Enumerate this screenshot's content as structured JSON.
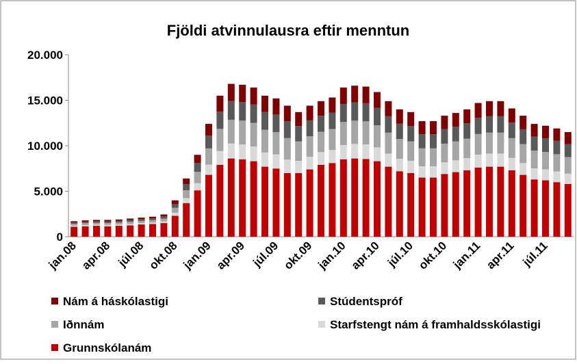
{
  "chart_data": {
    "type": "stacked_bar",
    "title": "Fjöldi atvinnulausra eftir menntun",
    "categories": [
      "jan.08",
      null,
      null,
      "apr.08",
      null,
      null,
      "júl.08",
      null,
      null,
      "okt.08",
      null,
      null,
      "jan.09",
      null,
      null,
      "apr.09",
      null,
      null,
      "júl.09",
      null,
      null,
      "okt.09",
      null,
      null,
      "jan.10",
      null,
      null,
      "apr.10",
      null,
      null,
      "júl.10",
      null,
      null,
      "okt.10",
      null,
      null,
      "jan.11",
      null,
      null,
      "apr.11",
      null,
      null,
      "júl.11",
      null,
      null
    ],
    "series": [
      {
        "name": "Grunnskólanám",
        "color": "#c00000",
        "values": [
          1100,
          1150,
          1200,
          1150,
          1200,
          1250,
          1350,
          1400,
          1500,
          2300,
          3700,
          5100,
          6800,
          7900,
          8600,
          8500,
          8300,
          7700,
          7500,
          7000,
          7000,
          7400,
          7900,
          8100,
          8500,
          8600,
          8550,
          8300,
          7700,
          7200,
          7000,
          6500,
          6500,
          6900,
          7100,
          7300,
          7600,
          7700,
          7700,
          7300,
          6800,
          6300,
          6200,
          6000,
          5800
        ]
      },
      {
        "name": "Starfstengt nám á framhaldsskólastigi",
        "color": "#d9d9d9",
        "values": [
          120,
          130,
          130,
          140,
          140,
          150,
          150,
          160,
          190,
          340,
          540,
          780,
          1120,
          1520,
          1640,
          1640,
          1620,
          1560,
          1540,
          1480,
          1340,
          1400,
          1400,
          1440,
          1580,
          1600,
          1590,
          1520,
          1440,
          1360,
          1340,
          1240,
          1240,
          1280,
          1300,
          1340,
          1420,
          1440,
          1440,
          1360,
          1300,
          1220,
          1200,
          1180,
          1140
        ]
      },
      {
        "name": "Iðnnám",
        "color": "#a6a6a6",
        "values": [
          190,
          210,
          210,
          220,
          220,
          240,
          240,
          260,
          300,
          540,
          860,
          1250,
          1790,
          2430,
          2620,
          2620,
          2590,
          2500,
          2460,
          2370,
          2140,
          2240,
          2240,
          2300,
          2530,
          2560,
          2540,
          2430,
          2300,
          2180,
          2140,
          1980,
          1980,
          2050,
          2080,
          2140,
          2270,
          2300,
          2300,
          2180,
          2080,
          1950,
          1920,
          1890,
          1820
        ]
      },
      {
        "name": "Stúdentspróf",
        "color": "#595959",
        "values": [
          150,
          160,
          160,
          180,
          180,
          190,
          190,
          200,
          240,
          430,
          680,
          980,
          1400,
          1900,
          2050,
          2050,
          2030,
          1950,
          1930,
          1850,
          1680,
          1750,
          1750,
          1800,
          1980,
          2000,
          1990,
          1900,
          1800,
          1700,
          1680,
          1550,
          1550,
          1600,
          1630,
          1680,
          1780,
          1800,
          1800,
          1700,
          1630,
          1530,
          1500,
          1480,
          1430
        ]
      },
      {
        "name": "Nám á háskólastigi",
        "color": "#7f0000",
        "values": [
          140,
          150,
          150,
          160,
          160,
          170,
          170,
          180,
          220,
          390,
          620,
          890,
          1290,
          1750,
          1890,
          1890,
          1860,
          1790,
          1770,
          1700,
          1540,
          1610,
          1610,
          1660,
          1810,
          1840,
          1830,
          1750,
          1660,
          1560,
          1540,
          1430,
          1430,
          1470,
          1490,
          1540,
          1630,
          1660,
          1660,
          1560,
          1490,
          1400,
          1380,
          1350,
          1310
        ]
      }
    ],
    "ylim": [
      0,
      20000
    ],
    "yticks": [
      0,
      {
        "value": 5000,
        "label": "5.000"
      },
      {
        "value": 10000,
        "label": "10.000"
      },
      {
        "value": 15000,
        "label": "15.000"
      },
      {
        "value": 20000,
        "label": "20.000"
      }
    ],
    "grid": false
  }
}
